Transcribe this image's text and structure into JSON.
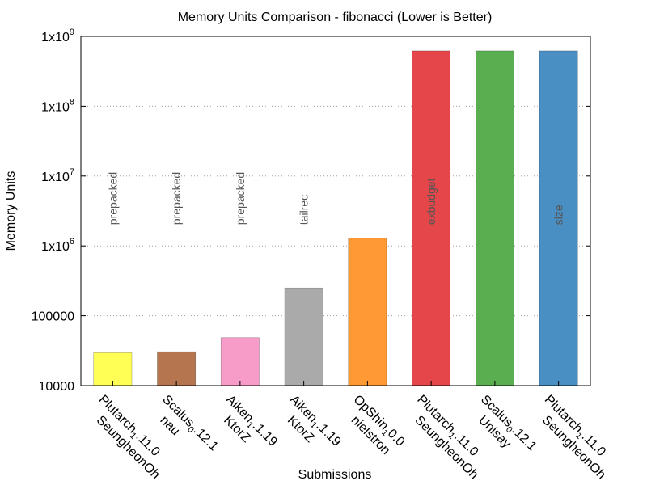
{
  "chart_data": {
    "type": "bar",
    "title": "Memory Units Comparison - fibonacci (Lower is Better)",
    "xlabel": "Submissions",
    "ylabel": "Memory Units",
    "yscale": "log",
    "ylim": [
      10000,
      1000000000
    ],
    "y_ticks": [
      {
        "value": 10000,
        "label": "10000"
      },
      {
        "value": 100000,
        "label": "100000"
      },
      {
        "value": 1000000,
        "label": "1x10",
        "exp": "6"
      },
      {
        "value": 10000000,
        "label": "1x10",
        "exp": "7"
      },
      {
        "value": 100000000,
        "label": "1x10",
        "exp": "8"
      },
      {
        "value": 1000000000,
        "label": "1x10",
        "exp": "9"
      }
    ],
    "bars": [
      {
        "name": "Plutarch",
        "sub": "1",
        "version": ".11.0",
        "author": "SeungheonOh",
        "value": 29500,
        "annotation": "prepacked",
        "color": "#ffff55"
      },
      {
        "name": "Scalus",
        "sub": "0",
        "version": ".12.1",
        "author": "nau",
        "value": 30500,
        "annotation": "prepacked",
        "color": "#b5754f"
      },
      {
        "name": "Aiken",
        "sub": "1",
        "version": ".1.19",
        "author": "KtorZ",
        "value": 48500,
        "annotation": "prepacked",
        "color": "#f79cc8"
      },
      {
        "name": "Aiken",
        "sub": "1",
        "version": ".1.19",
        "author": "KtorZ",
        "value": 250000,
        "annotation": "tailrec",
        "color": "#aaaaaa"
      },
      {
        "name": "OpShin",
        "sub": "1",
        "version": "0.0",
        "author": "nielstron",
        "value": 1300000,
        "annotation": "",
        "color": "#ff9933"
      },
      {
        "name": "Plutarch",
        "sub": "1",
        "version": ".11.0",
        "author": "SeungheonOh",
        "value": 620000000,
        "annotation": "exbudget",
        "color": "#e5464a"
      },
      {
        "name": "Scalus",
        "sub": "0",
        "version": ".12.1",
        "author": "Unisay",
        "value": 620000000,
        "annotation": "",
        "color": "#5aae4f"
      },
      {
        "name": "Plutarch",
        "sub": "1",
        "version": ".11.0",
        "author": "SeungheonOh",
        "value": 620000000,
        "annotation": "size",
        "color": "#4a8fc4"
      }
    ]
  }
}
